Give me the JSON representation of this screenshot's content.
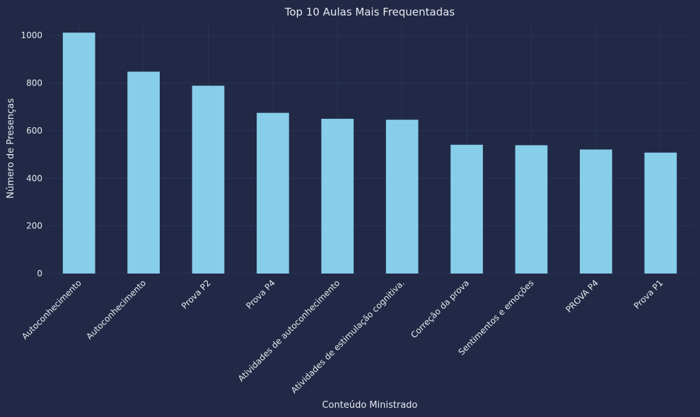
{
  "chart_data": {
    "type": "bar",
    "title": "Top 10 Aulas Mais Frequentadas",
    "xlabel": "Conteúdo Ministrado",
    "ylabel": "Número de Presenças",
    "categories": [
      "Autoconhecimento",
      "Autoconhecimento",
      "Prova P2",
      "Prova P4",
      "Atividades de autoconhecimento",
      "Atividades de estimulação cognitiva.",
      "Correção da prova",
      "Sentimentos e emoções",
      "PROVA P4",
      "Prova P1"
    ],
    "values": [
      1012,
      848,
      789,
      675,
      650,
      646,
      541,
      539,
      521,
      508
    ],
    "ylim": [
      0,
      1060
    ],
    "yticks": [
      0,
      200,
      400,
      600,
      800,
      1000
    ],
    "grid": true,
    "colors": {
      "background": "#212946",
      "bar": "#87ceeb",
      "grid": "#2a3459",
      "text": "#e8e8ef"
    }
  }
}
